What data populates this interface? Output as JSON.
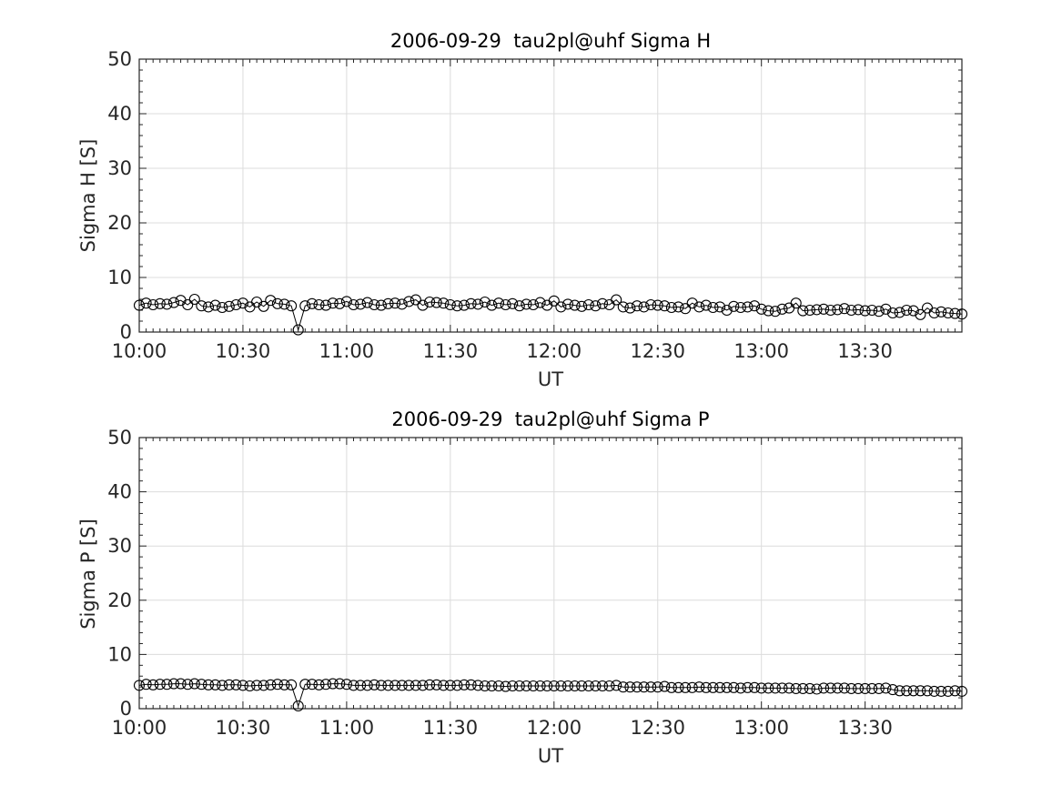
{
  "chart_data": [
    {
      "type": "line",
      "title": "2006-09-29  tau2pl@uhf Sigma H",
      "xlabel": "UT",
      "ylabel": "Sigma H [S]",
      "ylim": [
        0,
        50
      ],
      "yticks": [
        0,
        10,
        20,
        30,
        40,
        50
      ],
      "xlim": [
        "10:00",
        "13:58"
      ],
      "xticks": [
        "10:00",
        "10:30",
        "11:00",
        "11:30",
        "12:00",
        "12:30",
        "13:00",
        "13:30"
      ],
      "grid": true,
      "marker": "open-circle",
      "series": [
        {
          "x": [
            "10:00",
            "10:02",
            "10:04",
            "10:06",
            "10:08",
            "10:10",
            "10:12",
            "10:14",
            "10:16",
            "10:18",
            "10:20",
            "10:22",
            "10:24",
            "10:26",
            "10:28",
            "10:30",
            "10:32",
            "10:34",
            "10:36",
            "10:38",
            "10:40",
            "10:42",
            "10:44",
            "10:46",
            "10:48",
            "10:50",
            "10:52",
            "10:54",
            "10:56",
            "10:58",
            "11:00",
            "11:02",
            "11:04",
            "11:06",
            "11:08",
            "11:10",
            "11:12",
            "11:14",
            "11:16",
            "11:18",
            "11:20",
            "11:22",
            "11:24",
            "11:26",
            "11:28",
            "11:30",
            "11:32",
            "11:34",
            "11:36",
            "11:38",
            "11:40",
            "11:42",
            "11:44",
            "11:46",
            "11:48",
            "11:50",
            "11:52",
            "11:54",
            "11:56",
            "11:58",
            "12:00",
            "12:02",
            "12:04",
            "12:06",
            "12:08",
            "12:10",
            "12:12",
            "12:14",
            "12:16",
            "12:18",
            "12:20",
            "12:22",
            "12:24",
            "12:26",
            "12:28",
            "12:30",
            "12:32",
            "12:34",
            "12:36",
            "12:38",
            "12:40",
            "12:42",
            "12:44",
            "12:46",
            "12:48",
            "12:50",
            "12:52",
            "12:54",
            "12:56",
            "12:58",
            "13:00",
            "13:02",
            "13:04",
            "13:06",
            "13:08",
            "13:10",
            "13:12",
            "13:14",
            "13:16",
            "13:18",
            "13:20",
            "13:22",
            "13:24",
            "13:26",
            "13:28",
            "13:30",
            "13:32",
            "13:34",
            "13:36",
            "13:38",
            "13:40",
            "13:42",
            "13:44",
            "13:46",
            "13:48",
            "13:50",
            "13:52",
            "13:54",
            "13:56",
            "13:58"
          ],
          "values": [
            4.9,
            5.3,
            5.0,
            5.2,
            5.1,
            5.4,
            5.8,
            5.0,
            6.0,
            4.8,
            4.6,
            4.9,
            4.5,
            4.7,
            5.0,
            5.3,
            4.6,
            5.5,
            4.7,
            5.8,
            5.2,
            5.1,
            4.8,
            0.4,
            4.8,
            5.2,
            5.0,
            4.9,
            5.3,
            5.2,
            5.6,
            5.0,
            5.1,
            5.4,
            5.0,
            4.9,
            5.2,
            5.3,
            5.1,
            5.6,
            5.9,
            4.9,
            5.5,
            5.4,
            5.3,
            5.0,
            4.8,
            4.9,
            5.2,
            5.1,
            5.5,
            4.9,
            5.3,
            5.0,
            5.2,
            4.8,
            5.1,
            5.0,
            5.4,
            4.9,
            5.7,
            4.6,
            5.1,
            4.9,
            4.7,
            5.0,
            4.8,
            5.2,
            5.0,
            5.9,
            4.6,
            4.4,
            4.8,
            4.6,
            5.0,
            4.9,
            4.8,
            4.5,
            4.6,
            4.3,
            5.3,
            4.6,
            4.9,
            4.5,
            4.6,
            4.0,
            4.7,
            4.5,
            4.6,
            4.8,
            4.2,
            3.9,
            3.8,
            4.2,
            4.4,
            5.3,
            3.9,
            4.0,
            4.1,
            4.2,
            4.0,
            4.1,
            4.3,
            4.0,
            4.1,
            3.9,
            4.0,
            3.8,
            4.2,
            3.5,
            3.6,
            4.0,
            3.9,
            3.2,
            4.4,
            3.5,
            3.7,
            3.5,
            3.4,
            3.3
          ]
        }
      ]
    },
    {
      "type": "line",
      "title": "2006-09-29  tau2pl@uhf Sigma P",
      "xlabel": "UT",
      "ylabel": "Sigma P [S]",
      "ylim": [
        0,
        50
      ],
      "yticks": [
        0,
        10,
        20,
        30,
        40,
        50
      ],
      "xlim": [
        "10:00",
        "13:58"
      ],
      "xticks": [
        "10:00",
        "10:30",
        "11:00",
        "11:30",
        "12:00",
        "12:30",
        "13:00",
        "13:30"
      ],
      "grid": true,
      "marker": "open-circle",
      "series": [
        {
          "x": [
            "10:00",
            "10:02",
            "10:04",
            "10:06",
            "10:08",
            "10:10",
            "10:12",
            "10:14",
            "10:16",
            "10:18",
            "10:20",
            "10:22",
            "10:24",
            "10:26",
            "10:28",
            "10:30",
            "10:32",
            "10:34",
            "10:36",
            "10:38",
            "10:40",
            "10:42",
            "10:44",
            "10:46",
            "10:48",
            "10:50",
            "10:52",
            "10:54",
            "10:56",
            "10:58",
            "11:00",
            "11:02",
            "11:04",
            "11:06",
            "11:08",
            "11:10",
            "11:12",
            "11:14",
            "11:16",
            "11:18",
            "11:20",
            "11:22",
            "11:24",
            "11:26",
            "11:28",
            "11:30",
            "11:32",
            "11:34",
            "11:36",
            "11:38",
            "11:40",
            "11:42",
            "11:44",
            "11:46",
            "11:48",
            "11:50",
            "11:52",
            "11:54",
            "11:56",
            "11:58",
            "12:00",
            "12:02",
            "12:04",
            "12:06",
            "12:08",
            "12:10",
            "12:12",
            "12:14",
            "12:16",
            "12:18",
            "12:20",
            "12:22",
            "12:24",
            "12:26",
            "12:28",
            "12:30",
            "12:32",
            "12:34",
            "12:36",
            "12:38",
            "12:40",
            "12:42",
            "12:44",
            "12:46",
            "12:48",
            "12:50",
            "12:52",
            "12:54",
            "12:56",
            "12:58",
            "13:00",
            "13:02",
            "13:04",
            "13:06",
            "13:08",
            "13:10",
            "13:12",
            "13:14",
            "13:16",
            "13:18",
            "13:20",
            "13:22",
            "13:24",
            "13:26",
            "13:28",
            "13:30",
            "13:32",
            "13:34",
            "13:36",
            "13:38",
            "13:40",
            "13:42",
            "13:44",
            "13:46",
            "13:48",
            "13:50",
            "13:52",
            "13:54",
            "13:56",
            "13:58"
          ],
          "values": [
            4.3,
            4.5,
            4.4,
            4.5,
            4.5,
            4.6,
            4.6,
            4.5,
            4.6,
            4.5,
            4.4,
            4.4,
            4.3,
            4.4,
            4.4,
            4.3,
            4.2,
            4.3,
            4.3,
            4.4,
            4.5,
            4.4,
            4.4,
            0.5,
            4.5,
            4.5,
            4.4,
            4.5,
            4.6,
            4.6,
            4.5,
            4.3,
            4.3,
            4.3,
            4.4,
            4.3,
            4.3,
            4.3,
            4.3,
            4.3,
            4.3,
            4.3,
            4.4,
            4.4,
            4.3,
            4.3,
            4.3,
            4.4,
            4.4,
            4.3,
            4.2,
            4.2,
            4.2,
            4.1,
            4.2,
            4.2,
            4.2,
            4.2,
            4.2,
            4.2,
            4.2,
            4.2,
            4.2,
            4.2,
            4.2,
            4.2,
            4.2,
            4.2,
            4.2,
            4.3,
            4.0,
            4.0,
            4.0,
            4.0,
            4.0,
            4.0,
            4.1,
            3.9,
            3.9,
            3.9,
            3.9,
            4.0,
            3.9,
            3.9,
            3.9,
            3.9,
            3.9,
            3.8,
            3.9,
            3.9,
            3.8,
            3.8,
            3.8,
            3.8,
            3.8,
            3.7,
            3.7,
            3.7,
            3.6,
            3.8,
            3.8,
            3.8,
            3.8,
            3.7,
            3.7,
            3.7,
            3.7,
            3.7,
            3.8,
            3.5,
            3.3,
            3.3,
            3.3,
            3.3,
            3.3,
            3.2,
            3.2,
            3.2,
            3.3,
            3.2
          ]
        }
      ]
    }
  ]
}
